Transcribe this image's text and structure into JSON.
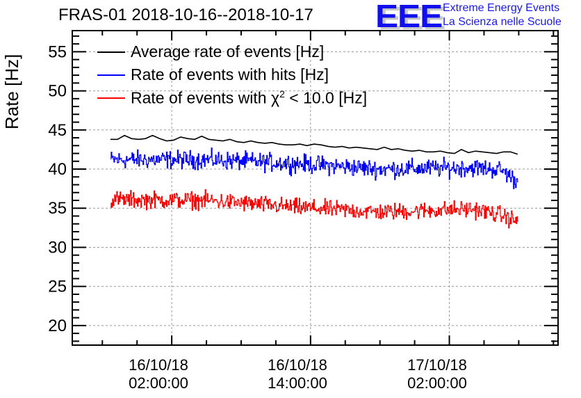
{
  "chart_data": {
    "type": "line",
    "title": "FRAS-01 2018-10-16--2018-10-17",
    "xlabel": "",
    "ylabel": "Rate [Hz]",
    "ylim": [
      17.5,
      57.7
    ],
    "xlim_hours_from_2018_10_16_00_00": [
      -6.6,
      35.4
    ],
    "grid": true,
    "legend_position": "top-left",
    "y_ticks": [
      20,
      25,
      30,
      35,
      40,
      45,
      50,
      55
    ],
    "y_tick_labels": [
      "20",
      "25",
      "30",
      "35",
      "40",
      "45",
      "50",
      "55"
    ],
    "x_ticks_hours": [
      2,
      14,
      26
    ],
    "x_tick_labels": [
      [
        "16/10/18",
        "02:00:00"
      ],
      [
        "16/10/18",
        "14:00:00"
      ],
      [
        "17/10/18",
        "02:00:00"
      ]
    ],
    "series": [
      {
        "name": "Average rate of events [Hz]",
        "color": "#000000",
        "x_start_hours": -3.3,
        "x_end_hours": 31.9,
        "values": [
          43.8,
          43.8,
          44.3,
          43.9,
          43.8,
          43.9,
          44.3,
          43.9,
          43.6,
          43.7,
          44.1,
          43.9,
          43.8,
          44.2,
          43.8,
          43.7,
          43.6,
          43.8,
          43.5,
          43.4,
          43.6,
          43.4,
          43.3,
          43.4,
          43.2,
          43.1,
          43.1,
          43.2,
          43.0,
          43.2,
          43.1,
          42.9,
          42.8,
          42.9,
          42.7,
          42.8,
          42.7,
          42.6,
          42.5,
          42.8,
          42.5,
          42.6,
          42.4,
          42.3,
          42.4,
          42.2,
          42.2,
          42.3,
          42.1,
          42.0,
          42.5,
          42.1,
          42.3,
          42.2,
          42.1,
          42.0,
          42.2,
          42.2,
          41.9
        ],
        "noise_amplitude": 0
      },
      {
        "name": "Rate of events with hits [Hz]",
        "color": "#0000ff",
        "x_start_hours": -3.3,
        "x_end_hours": 31.9,
        "trend": [
          [
            -3.3,
            41.2
          ],
          [
            5,
            41.2
          ],
          [
            13,
            40.7
          ],
          [
            20,
            40.0
          ],
          [
            28,
            40.2
          ],
          [
            30.5,
            39.9
          ],
          [
            31.9,
            38.3
          ]
        ],
        "noise_amplitude": 1.7
      },
      {
        "name": "Rate of events with χ² < 10.0 [Hz]",
        "color": "#ff0000",
        "x_start_hours": -3.3,
        "x_end_hours": 31.9,
        "trend": [
          [
            -3.3,
            36.1
          ],
          [
            5,
            36.0
          ],
          [
            13,
            35.1
          ],
          [
            20,
            34.5
          ],
          [
            28,
            34.9
          ],
          [
            30.5,
            34.1
          ],
          [
            31.9,
            33.3
          ]
        ],
        "noise_amplitude": 1.6
      }
    ]
  },
  "header": {
    "title": "FRAS-01 2018-10-16--2018-10-17"
  },
  "logo": {
    "mark": "EEE",
    "line1": "Extreme Energy Events",
    "line2": "La Scienza nelle Scuole"
  },
  "legend": {
    "items": [
      {
        "label": "Average rate of events [Hz]",
        "color": "#000000"
      },
      {
        "label": "Rate of events with hits [Hz]",
        "color": "#0000ff"
      },
      {
        "label_prefix": "Rate of events with ",
        "label_symbol": "χ",
        "label_sup": "2",
        "label_suffix": " < 10.0 [Hz]",
        "color": "#ff0000"
      }
    ]
  }
}
